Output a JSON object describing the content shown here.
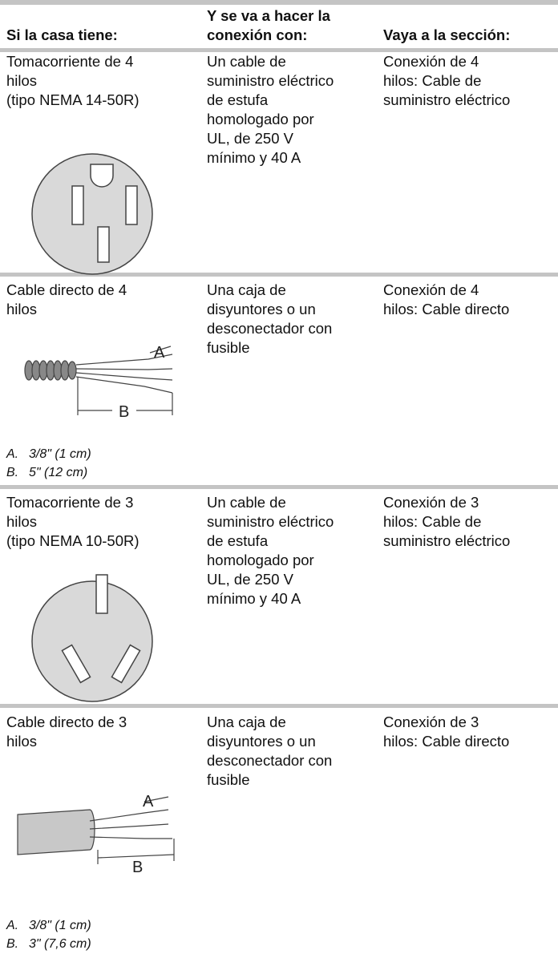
{
  "table": {
    "headers": [
      [
        "Si la casa tiene:"
      ],
      [
        "Y se va a hacer la",
        "conexión con:"
      ],
      [
        "Vaya a la sección:"
      ]
    ],
    "rows": [
      {
        "house": [
          "Tomacorriente de 4",
          "hilos",
          "(tipo NEMA 14-50R)"
        ],
        "connection": [
          "Un cable de",
          "suministro eléctrico",
          "de estufa",
          "homologado por",
          "UL, de 250 V",
          "mínimo y 40 A"
        ],
        "section": [
          "Conexión de 4",
          "hilos: Cable de",
          "suministro eléctrico"
        ]
      },
      {
        "house": [
          "Cable directo de 4",
          "hilos"
        ],
        "figure_labels": [
          "A",
          "B"
        ],
        "captions": [
          {
            "letter": "A.",
            "text": "3/8\" (1 cm)"
          },
          {
            "letter": "B.",
            "text": "5\" (12 cm)"
          }
        ],
        "connection": [
          "Una caja de",
          "disyuntores o un",
          "desconectador con",
          "fusible"
        ],
        "section": [
          "Conexión de 4",
          "hilos: Cable directo"
        ]
      },
      {
        "house": [
          "Tomacorriente de 3",
          "hilos",
          "(tipo NEMA 10-50R)"
        ],
        "connection": [
          "Un cable de",
          "suministro eléctrico",
          "de estufa",
          "homologado por",
          "UL, de 250 V",
          "mínimo y 40 A"
        ],
        "section": [
          "Conexión de 3",
          "hilos: Cable de",
          "suministro eléctrico"
        ]
      },
      {
        "house": [
          "Cable directo de 3",
          "hilos"
        ],
        "figure_labels": [
          "A",
          "B"
        ],
        "captions": [
          {
            "letter": "A.",
            "text": "3/8\" (1 cm)"
          },
          {
            "letter": "B.",
            "text": "3\" (7,6 cm)"
          }
        ],
        "connection": [
          "Una caja de",
          "disyuntores o un",
          "desconectador con",
          "fusible"
        ],
        "section": [
          "Conexión de 3",
          "hilos: Cable directo"
        ]
      }
    ]
  }
}
